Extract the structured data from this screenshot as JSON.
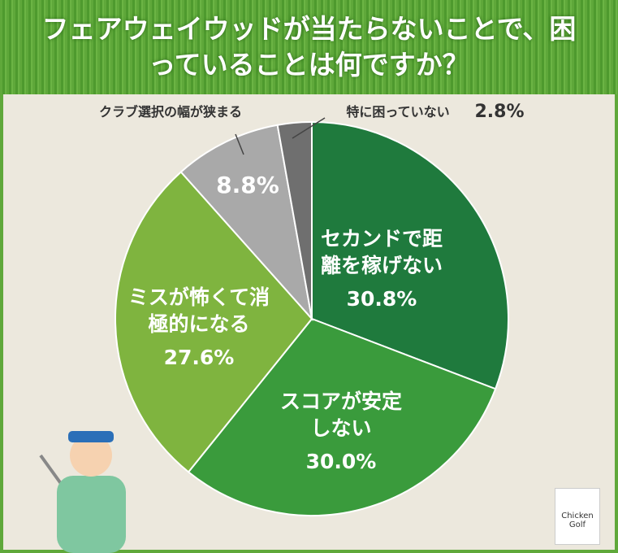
{
  "chart_data": {
    "type": "pie",
    "title": "フェアウェイウッドが当たらないことで、困っていることは何ですか？",
    "categories": [
      "セカンドで距離を稼げない",
      "スコアが安定しない",
      "ミスが怖くて消極的になる",
      "クラブ選択の幅が狭まる",
      "特に困っていない"
    ],
    "values": [
      30.8,
      30.0,
      27.6,
      8.8,
      2.8
    ],
    "value_labels": [
      "30.8%",
      "30.0%",
      "27.6%",
      "8.8%",
      "2.8%"
    ],
    "colors": [
      "#1f7a3d",
      "#3a9b3c",
      "#7fb43f",
      "#a9a9a9",
      "#6f6f6f"
    ]
  },
  "logo": "Chicken Golf"
}
